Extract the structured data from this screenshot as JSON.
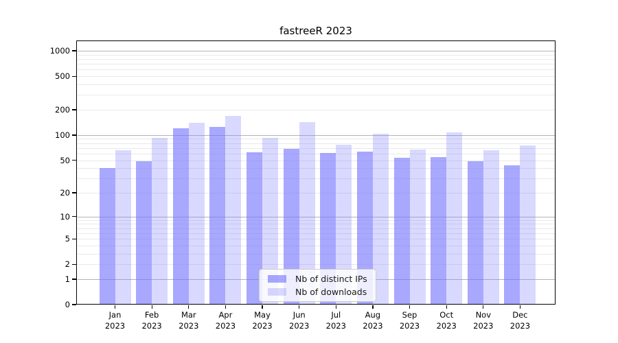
{
  "title": "fastreeR 2023",
  "chart_data": {
    "type": "bar",
    "title": "fastreeR 2023",
    "categories": [
      "Jan 2023",
      "Feb 2023",
      "Mar 2023",
      "Apr 2023",
      "May 2023",
      "Jun 2023",
      "Jul 2023",
      "Aug 2023",
      "Sep 2023",
      "Oct 2023",
      "Nov 2023",
      "Dec 2023"
    ],
    "series": [
      {
        "name": "Nb of distinct IPs",
        "color": "rgba(115,115,255,0.62)",
        "values": [
          40,
          49,
          120,
          126,
          62,
          69,
          61,
          64,
          53,
          54,
          49,
          43
        ]
      },
      {
        "name": "Nb of downloads",
        "color": "rgba(130,130,255,0.30)",
        "values": [
          66,
          92,
          140,
          170,
          92,
          143,
          77,
          103,
          67,
          107,
          66,
          75
        ]
      }
    ],
    "xlabel": "",
    "ylabel": "",
    "yscale": "log1p",
    "ylim": [
      0,
      1300
    ],
    "yticks": [
      0,
      1,
      2,
      5,
      10,
      20,
      50,
      100,
      200,
      500,
      1000
    ],
    "grid": "horizontal",
    "grid_major_values": [
      1,
      10,
      100,
      1000
    ],
    "grid_minor_values": [
      2,
      3,
      4,
      5,
      6,
      7,
      8,
      9,
      20,
      30,
      40,
      50,
      60,
      70,
      80,
      90,
      200,
      300,
      400,
      500,
      600,
      700,
      800,
      900
    ],
    "grid_major_color": "#b3b3b3",
    "grid_minor_color": "#e9e9e9",
    "legend_position": "lower center",
    "legend_entries": [
      "Nb of distinct IPs",
      "Nb of downloads"
    ]
  }
}
